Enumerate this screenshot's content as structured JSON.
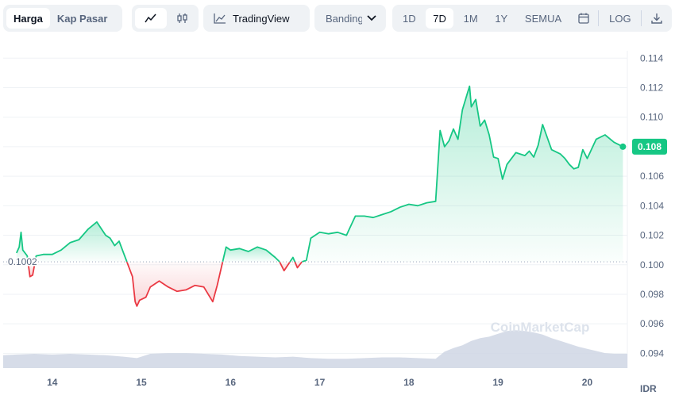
{
  "toolbar": {
    "mode_tabs": [
      {
        "label": "Harga",
        "active": true
      },
      {
        "label": "Kap Pasar",
        "active": false
      }
    ],
    "tradingview_label": "TradingView",
    "compare_label": "Banding",
    "range_tabs": [
      {
        "label": "1D",
        "active": false
      },
      {
        "label": "7D",
        "active": true
      },
      {
        "label": "1M",
        "active": false
      },
      {
        "label": "1Y",
        "active": false
      },
      {
        "label": "SEMUA",
        "active": false
      }
    ],
    "log_label": "LOG",
    "icons": [
      "line-chart-icon",
      "candlestick-icon",
      "tradingview-chart-icon",
      "chevron-down-icon",
      "calendar-icon",
      "download-icon"
    ]
  },
  "watermark": "CoinMarketCap",
  "colors": {
    "up": "#16c784",
    "down": "#ea3943",
    "volume": "#cfd6e4",
    "grid": "#eff2f5",
    "baseline": "#a6b0c3"
  },
  "chart_data": {
    "type": "line",
    "currency": "IDR",
    "baseline_label": "0.1002",
    "baseline_value": 0.1002,
    "last_price_label": "0.108",
    "ylim": [
      0.093,
      0.1145
    ],
    "y_ticks": [
      "0.114",
      "0.112",
      "0.110",
      "0.108",
      "0.106",
      "0.104",
      "0.102",
      "0.100",
      "0.098",
      "0.096",
      "0.094"
    ],
    "x_ticks": [
      "14",
      "15",
      "16",
      "17",
      "18",
      "19",
      "20"
    ],
    "xlim": [
      13.45,
      20.45
    ],
    "price": {
      "x": [
        13.6,
        13.63,
        13.65,
        13.67,
        13.72,
        13.75,
        13.78,
        13.82,
        13.9,
        14.0,
        14.1,
        14.2,
        14.3,
        14.4,
        14.5,
        14.6,
        14.65,
        14.7,
        14.75,
        14.8,
        14.85,
        14.9,
        14.93,
        14.95,
        14.98,
        15.05,
        15.1,
        15.2,
        15.3,
        15.4,
        15.5,
        15.6,
        15.7,
        15.8,
        15.85,
        15.9,
        15.95,
        16.0,
        16.1,
        16.2,
        16.3,
        16.4,
        16.5,
        16.55,
        16.6,
        16.7,
        16.75,
        16.8,
        16.85,
        16.9,
        17.0,
        17.1,
        17.2,
        17.3,
        17.33,
        17.4,
        17.5,
        17.6,
        17.7,
        17.8,
        17.9,
        18.0,
        18.1,
        18.2,
        18.3,
        18.35,
        18.4,
        18.45,
        18.5,
        18.55,
        18.6,
        18.65,
        18.68,
        18.7,
        18.75,
        18.8,
        18.85,
        18.9,
        18.95,
        19.0,
        19.05,
        19.1,
        19.2,
        19.3,
        19.35,
        19.4,
        19.45,
        19.5,
        19.6,
        19.7,
        19.75,
        19.8,
        19.85,
        19.9,
        19.95,
        20.0,
        20.1,
        20.2,
        20.3,
        20.4
      ],
      "y": [
        0.1008,
        0.1012,
        0.1022,
        0.101,
        0.1006,
        0.0992,
        0.0993,
        0.1006,
        0.1007,
        0.1007,
        0.101,
        0.1015,
        0.1017,
        0.1024,
        0.1029,
        0.102,
        0.1018,
        0.1013,
        0.1016,
        0.1008,
        0.1,
        0.0992,
        0.0975,
        0.0972,
        0.0976,
        0.0978,
        0.0985,
        0.0989,
        0.0985,
        0.0982,
        0.0983,
        0.0986,
        0.0985,
        0.0975,
        0.0986,
        0.0999,
        0.1012,
        0.101,
        0.1011,
        0.1009,
        0.1012,
        0.101,
        0.1005,
        0.1002,
        0.0996,
        0.1005,
        0.0998,
        0.1002,
        0.1003,
        0.1018,
        0.1022,
        0.1021,
        0.1022,
        0.102,
        0.1024,
        0.1033,
        0.1033,
        0.1032,
        0.1034,
        0.1036,
        0.1039,
        0.1041,
        0.104,
        0.1042,
        0.1043,
        0.1091,
        0.108,
        0.1084,
        0.1092,
        0.1085,
        0.1105,
        0.1115,
        0.1121,
        0.1107,
        0.1112,
        0.1094,
        0.1098,
        0.1088,
        0.1073,
        0.1072,
        0.1058,
        0.1068,
        0.1076,
        0.1074,
        0.1077,
        0.1073,
        0.1081,
        0.1095,
        0.1078,
        0.1075,
        0.1072,
        0.1068,
        0.1065,
        0.1066,
        0.1078,
        0.1072,
        0.1085,
        0.1088,
        0.1083,
        0.108
      ]
    },
    "volume": {
      "x": [
        13.45,
        13.6,
        13.8,
        14.0,
        14.2,
        14.4,
        14.6,
        14.8,
        14.95,
        15.1,
        15.3,
        15.5,
        15.7,
        15.9,
        16.1,
        16.3,
        16.5,
        16.7,
        16.9,
        17.1,
        17.3,
        17.5,
        17.7,
        17.9,
        18.1,
        18.3,
        18.4,
        18.5,
        18.6,
        18.7,
        18.8,
        18.9,
        19.0,
        19.1,
        19.2,
        19.3,
        19.4,
        19.5,
        19.6,
        19.7,
        19.8,
        19.9,
        20.0,
        20.1,
        20.2,
        20.3,
        20.45
      ],
      "v": [
        0.18,
        0.19,
        0.2,
        0.19,
        0.2,
        0.19,
        0.18,
        0.16,
        0.14,
        0.2,
        0.21,
        0.21,
        0.2,
        0.19,
        0.17,
        0.16,
        0.15,
        0.16,
        0.14,
        0.13,
        0.13,
        0.14,
        0.15,
        0.15,
        0.14,
        0.13,
        0.23,
        0.28,
        0.32,
        0.38,
        0.42,
        0.44,
        0.48,
        0.52,
        0.53,
        0.52,
        0.5,
        0.47,
        0.42,
        0.38,
        0.34,
        0.3,
        0.27,
        0.24,
        0.21,
        0.2,
        0.2
      ]
    }
  }
}
